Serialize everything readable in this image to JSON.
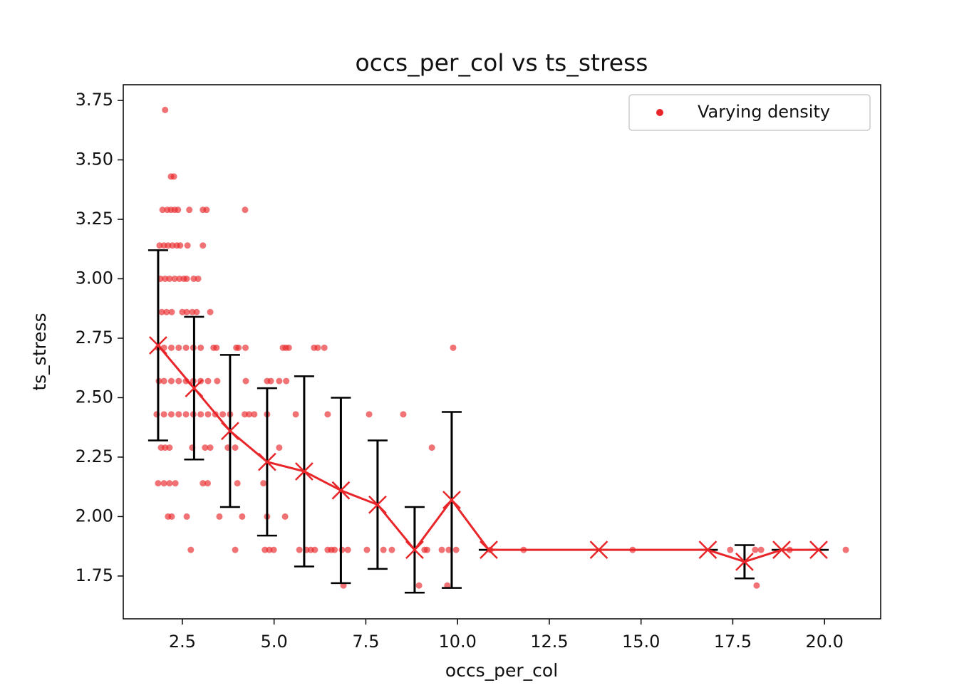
{
  "chart_data": {
    "type": "scatter",
    "title": "occs_per_col vs ts_stress",
    "x_label": "occs_per_col",
    "y_label": "ts_stress",
    "xlim": [
      0.89,
      21.53
    ],
    "ylim": [
      1.57,
      3.816
    ],
    "xticks": [
      {
        "value": 2.5,
        "label": "2.5"
      },
      {
        "value": 5.0,
        "label": "5.0"
      },
      {
        "value": 7.5,
        "label": "7.5"
      },
      {
        "value": 10.0,
        "label": "10.0"
      },
      {
        "value": 12.5,
        "label": "12.5"
      },
      {
        "value": 15.0,
        "label": "15.0"
      },
      {
        "value": 17.5,
        "label": "17.5"
      },
      {
        "value": 20.0,
        "label": "20.0"
      }
    ],
    "yticks": [
      {
        "value": 1.75,
        "label": "1.75"
      },
      {
        "value": 2.0,
        "label": "2.00"
      },
      {
        "value": 2.25,
        "label": "2.25"
      },
      {
        "value": 2.5,
        "label": "2.50"
      },
      {
        "value": 2.75,
        "label": "2.75"
      },
      {
        "value": 3.0,
        "label": "3.00"
      },
      {
        "value": 3.25,
        "label": "3.25"
      },
      {
        "value": 3.5,
        "label": "3.50"
      },
      {
        "value": 3.75,
        "label": "3.75"
      }
    ],
    "legend": "upper right",
    "series": [
      {
        "name": "Varying density",
        "color": "#e8262a",
        "x": [
          2.03,
          2.19,
          2.27,
          1.96,
          2.09,
          2.19,
          2.29,
          2.38,
          2.69,
          3.06,
          3.16,
          4.21,
          1.88,
          2.0,
          2.11,
          2.23,
          2.35,
          2.44,
          2.64,
          3.06,
          1.9,
          2.03,
          2.15,
          2.29,
          2.42,
          2.54,
          2.62,
          2.81,
          2.93,
          1.94,
          2.07,
          2.21,
          2.5,
          2.62,
          2.77,
          2.89,
          3.26,
          1.84,
          2.0,
          2.2,
          2.4,
          2.6,
          2.8,
          3.0,
          3.35,
          3.43,
          3.97,
          4.03,
          4.22,
          5.24,
          5.32,
          5.4,
          6.09,
          6.19,
          6.37,
          9.88,
          1.86,
          2.0,
          2.2,
          2.4,
          2.6,
          2.8,
          3.0,
          3.2,
          3.45,
          4.23,
          4.81,
          4.91,
          5.14,
          5.33,
          1.8,
          2.0,
          2.2,
          2.4,
          2.6,
          2.8,
          3.0,
          3.2,
          3.4,
          3.6,
          3.8,
          4.2,
          4.32,
          4.46,
          4.81,
          5.59,
          6.46,
          7.59,
          8.52,
          1.92,
          2.03,
          2.15,
          2.77,
          3.12,
          3.26,
          3.74,
          3.94,
          5.14,
          9.3,
          1.84,
          2.0,
          2.15,
          2.31,
          3.06,
          3.19,
          4.0,
          4.71,
          2.11,
          2.21,
          2.62,
          3.51,
          4.13,
          4.81,
          5.3,
          2.73,
          3.94,
          4.75,
          4.87,
          4.99,
          5.69,
          5.88,
          6.0,
          6.11,
          6.46,
          6.56,
          6.65,
          6.85,
          7.01,
          7.53,
          7.98,
          8.21,
          9.1,
          9.17,
          9.57,
          9.76,
          9.96,
          10.89,
          11.8,
          14.77,
          17.43,
          18.11,
          18.27,
          19.05,
          20.58,
          6.89,
          8.95,
          9.72,
          18.15
        ],
        "values": [
          3.71,
          3.43,
          3.43,
          3.29,
          3.29,
          3.29,
          3.29,
          3.29,
          3.29,
          3.29,
          3.29,
          3.29,
          3.14,
          3.14,
          3.14,
          3.14,
          3.14,
          3.14,
          3.14,
          3.14,
          3.0,
          3.0,
          3.0,
          3.0,
          3.0,
          3.0,
          3.0,
          3.0,
          3.0,
          2.86,
          2.86,
          2.86,
          2.86,
          2.86,
          2.86,
          2.86,
          2.86,
          2.71,
          2.71,
          2.71,
          2.71,
          2.71,
          2.71,
          2.71,
          2.71,
          2.71,
          2.71,
          2.71,
          2.71,
          2.71,
          2.71,
          2.71,
          2.71,
          2.71,
          2.71,
          2.71,
          2.57,
          2.57,
          2.57,
          2.57,
          2.57,
          2.57,
          2.57,
          2.57,
          2.57,
          2.57,
          2.57,
          2.57,
          2.57,
          2.57,
          2.43,
          2.43,
          2.43,
          2.43,
          2.43,
          2.43,
          2.43,
          2.43,
          2.43,
          2.43,
          2.43,
          2.43,
          2.43,
          2.43,
          2.43,
          2.43,
          2.43,
          2.43,
          2.43,
          2.29,
          2.29,
          2.29,
          2.29,
          2.29,
          2.29,
          2.29,
          2.29,
          2.29,
          2.29,
          2.14,
          2.14,
          2.14,
          2.14,
          2.14,
          2.14,
          2.14,
          2.14,
          2.0,
          2.0,
          2.0,
          2.0,
          2.0,
          2.0,
          2.0,
          1.86,
          1.86,
          1.86,
          1.86,
          1.86,
          1.86,
          1.86,
          1.86,
          1.86,
          1.86,
          1.86,
          1.86,
          1.86,
          1.86,
          1.86,
          1.86,
          1.86,
          1.86,
          1.86,
          1.86,
          1.86,
          1.86,
          1.86,
          1.86,
          1.86,
          1.86,
          1.86,
          1.86,
          1.86,
          1.86,
          1.71,
          1.71,
          1.71,
          1.71
        ]
      },
      {
        "type": "errorbar",
        "color": "#e8262a",
        "errcolor": "#000000",
        "x": [
          1.84,
          2.82,
          3.8,
          4.81,
          5.82,
          6.82,
          7.82,
          8.83,
          9.84,
          10.85,
          13.85,
          16.82,
          17.82,
          18.83,
          19.84
        ],
        "values": [
          2.72,
          2.54,
          2.36,
          2.23,
          2.19,
          2.11,
          2.05,
          1.86,
          2.07,
          1.86,
          1.86,
          1.86,
          1.81,
          1.86,
          1.86
        ],
        "errors": [
          0.4,
          0.3,
          0.32,
          0.31,
          0.4,
          0.39,
          0.27,
          0.18,
          0.37,
          0,
          0,
          0,
          0.07,
          0,
          0
        ]
      }
    ]
  }
}
